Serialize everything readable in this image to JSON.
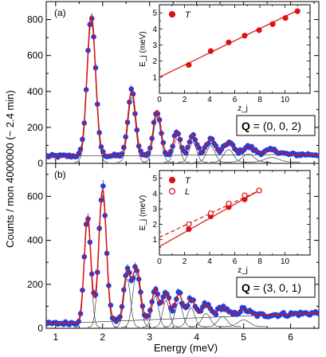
{
  "chart_data": {
    "type": "scatter",
    "xlabel": "Energy (meV)",
    "ylabel": "Counts / mon 4000000 (~ 2.4 min)",
    "xlim": [
      0.8,
      6.6
    ],
    "xticks": [
      1,
      2,
      3,
      4,
      5,
      6
    ],
    "panels": [
      {
        "id": "a",
        "panel_label": "(a)",
        "q_prefix": "Q",
        "q_value": " = (0, 0, 2)",
        "ylim": [
          0,
          900
        ],
        "yticks": [
          0,
          200,
          400,
          600,
          800
        ],
        "colors": {
          "data": "#1f3fe0",
          "fit": "#dd1111",
          "component": "#222222"
        },
        "baseline": [
          [
            0.8,
            40
          ],
          [
            6.6,
            50
          ]
        ],
        "peaks": [
          {
            "center": 1.76,
            "amplitude": 780,
            "width": 0.09
          },
          {
            "center": 2.62,
            "amplitude": 360,
            "width": 0.08
          },
          {
            "center": 3.16,
            "amplitude": 250,
            "width": 0.08
          },
          {
            "center": 3.58,
            "amplitude": 130,
            "width": 0.07
          },
          {
            "center": 3.92,
            "amplitude": 110,
            "width": 0.08
          },
          {
            "center": 4.3,
            "amplitude": 90,
            "width": 0.09
          },
          {
            "center": 4.68,
            "amplitude": 70,
            "width": 0.1
          },
          {
            "center": 5.1,
            "amplitude": 45,
            "width": 0.12
          },
          {
            "center": 5.6,
            "amplitude": 25,
            "width": 0.15
          }
        ],
        "inset": {
          "ylabel": "E_j (meV)",
          "xlabel": "z_j",
          "xlim": [
            0,
            12
          ],
          "ylim": [
            0,
            5.5
          ],
          "xticks": [
            0,
            2,
            4,
            6,
            8,
            10
          ],
          "yticks": [
            1,
            2,
            3,
            4,
            5
          ],
          "series": [
            {
              "name": "T",
              "style": "filled",
              "x": [
                2.34,
                4.09,
                5.52,
                6.79,
                7.94,
                9.02,
                10.04,
                11.0
              ],
              "y": [
                1.76,
                2.62,
                3.16,
                3.58,
                3.92,
                4.3,
                4.68,
                5.1
              ],
              "fit": [
                [
                  0,
                  1.0
                ],
                [
                  11.0,
                  5.15
                ]
              ]
            }
          ]
        }
      },
      {
        "id": "b",
        "panel_label": "(b)",
        "q_prefix": "Q",
        "q_value": " = (3, 0, 1)",
        "ylim": [
          0,
          750
        ],
        "yticks": [
          0,
          200,
          400,
          600
        ],
        "colors": {
          "data": "#1f3fe0",
          "fit": "#dd1111",
          "component": "#222222"
        },
        "baseline": [
          [
            0.8,
            20
          ],
          [
            6.6,
            70
          ]
        ],
        "peaks": [
          {
            "center": 1.68,
            "amplitude": 480,
            "width": 0.07
          },
          {
            "center": 2.0,
            "amplitude": 600,
            "width": 0.08
          },
          {
            "center": 2.52,
            "amplitude": 220,
            "width": 0.07
          },
          {
            "center": 2.72,
            "amplitude": 240,
            "width": 0.08
          },
          {
            "center": 3.12,
            "amplitude": 140,
            "width": 0.07
          },
          {
            "center": 3.35,
            "amplitude": 120,
            "width": 0.07
          },
          {
            "center": 3.62,
            "amplitude": 110,
            "width": 0.08
          },
          {
            "center": 3.88,
            "amplitude": 85,
            "width": 0.08
          },
          {
            "center": 4.2,
            "amplitude": 60,
            "width": 0.09
          },
          {
            "center": 4.55,
            "amplitude": 45,
            "width": 0.1
          },
          {
            "center": 5.0,
            "amplitude": 30,
            "width": 0.12
          }
        ],
        "inset": {
          "ylabel": "E_j (meV)",
          "xlabel": "z_j",
          "xlim": [
            0,
            12
          ],
          "ylim": [
            0,
            5.5
          ],
          "xticks": [
            0,
            2,
            4,
            6,
            8,
            10
          ],
          "yticks": [
            1,
            2,
            3,
            4,
            5
          ],
          "series": [
            {
              "name": "T",
              "style": "filled",
              "x": [
                2.34,
                4.09,
                5.52,
                6.79,
                7.94
              ],
              "y": [
                1.68,
                2.52,
                3.12,
                3.62,
                4.2
              ],
              "fit": [
                [
                  0,
                  0.55
                ],
                [
                  7.94,
                  4.2
                ]
              ]
            },
            {
              "name": "L",
              "style": "open",
              "x": [
                2.34,
                4.09,
                5.52,
                6.79,
                7.94
              ],
              "y": [
                2.0,
                2.72,
                3.35,
                3.88,
                4.2
              ],
              "fit": [
                [
                  0,
                  1.15
                ],
                [
                  7.94,
                  4.2
                ]
              ]
            }
          ]
        }
      }
    ]
  }
}
